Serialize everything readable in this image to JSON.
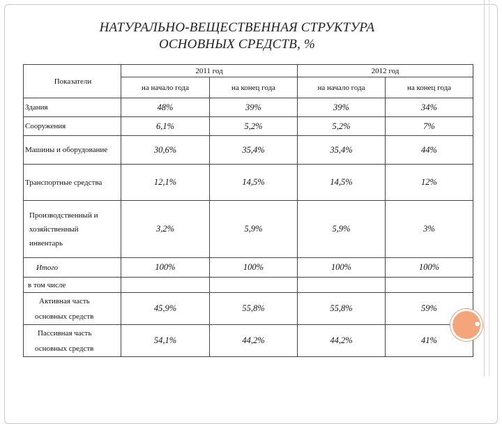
{
  "title_line1": "НАТУРАЛЬНО-ВЕЩЕСТВЕННАЯ СТРУКТУРА",
  "title_line2": "ОСНОВНЫХ СРЕДСТВ, %",
  "header": {
    "indicators": "Показатели",
    "year1": "2011 год",
    "year2": "2012 год",
    "start": "на начало года",
    "end": "на конец года"
  },
  "rows": [
    {
      "label": "Здания",
      "v": [
        "48%",
        "39%",
        "39%",
        "34%"
      ]
    },
    {
      "label": "Сооружения",
      "v": [
        "6,1%",
        "5,2%",
        "5,2%",
        "7%"
      ]
    },
    {
      "label": "Машины и оборудование",
      "v": [
        "30,6%",
        "35,4%",
        "35,4%",
        "44%"
      ]
    },
    {
      "label": "Транспортные средства",
      "v": [
        "12,1%",
        "14,5%",
        "14,5%",
        "12%"
      ]
    },
    {
      "label_lines": [
        "Производственный и",
        "хозяйственный",
        "инвентарь"
      ],
      "v": [
        "3,2%",
        "5,9%",
        "5,9%",
        "3%"
      ]
    },
    {
      "label": "Итого",
      "v": [
        "100%",
        "100%",
        "100%",
        "100%"
      ]
    }
  ],
  "including": "в том числе",
  "active": {
    "label_lines": [
      "Активная часть",
      "основных средств"
    ],
    "v": [
      "45,9%",
      "55,8%",
      "55,8%",
      "59%"
    ]
  },
  "passive": {
    "label_lines": [
      "Пассивная часть",
      "основных средств"
    ],
    "v": [
      "54,1%",
      "44,2%",
      "44,2%",
      "41%"
    ]
  },
  "colors": {
    "accent": "#f4a57c",
    "border": "#444444"
  }
}
